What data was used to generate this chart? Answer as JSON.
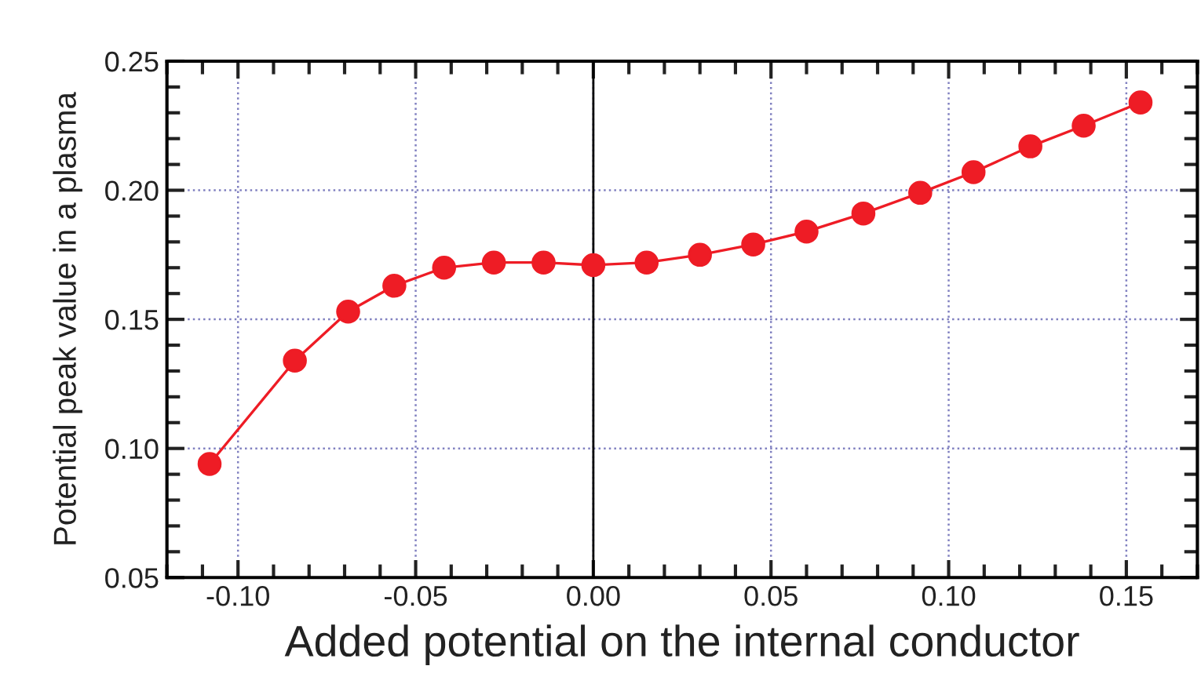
{
  "chart_data": {
    "type": "line",
    "xlabel": "Added potential on the internal conductor",
    "ylabel": "Potential peak value in a plasma",
    "x": [
      -0.108,
      -0.084,
      -0.069,
      -0.056,
      -0.042,
      -0.028,
      -0.014,
      0.0,
      0.015,
      0.03,
      0.045,
      0.06,
      0.076,
      0.092,
      0.107,
      0.123,
      0.138,
      0.154
    ],
    "series": [
      {
        "color": "#ee1c25",
        "values": [
          0.094,
          0.134,
          0.153,
          0.163,
          0.17,
          0.172,
          0.172,
          0.171,
          0.172,
          0.175,
          0.179,
          0.184,
          0.191,
          0.199,
          0.207,
          0.217,
          0.225,
          0.234
        ]
      }
    ],
    "marker": "circle",
    "line_style": "solid",
    "xlim": [
      -0.12,
      0.17
    ],
    "ylim": [
      0.05,
      0.25
    ],
    "xticks": [
      {
        "value": -0.1,
        "label": "-0.10"
      },
      {
        "value": -0.05,
        "label": "-0.05"
      },
      {
        "value": 0.0,
        "label": "0.00"
      },
      {
        "value": 0.05,
        "label": "0.05"
      },
      {
        "value": 0.1,
        "label": "0.10"
      },
      {
        "value": 0.15,
        "label": "0.15"
      }
    ],
    "yticks": [
      {
        "value": 0.05,
        "label": "0.05"
      },
      {
        "value": 0.1,
        "label": "0.10"
      },
      {
        "value": 0.15,
        "label": "0.15"
      },
      {
        "value": 0.2,
        "label": "0.20"
      },
      {
        "value": 0.25,
        "label": "0.25"
      }
    ],
    "grid": true,
    "ref_lines": [
      {
        "axis": "x",
        "value": 0.0,
        "color": "#000000",
        "line_style": "solid"
      }
    ]
  }
}
